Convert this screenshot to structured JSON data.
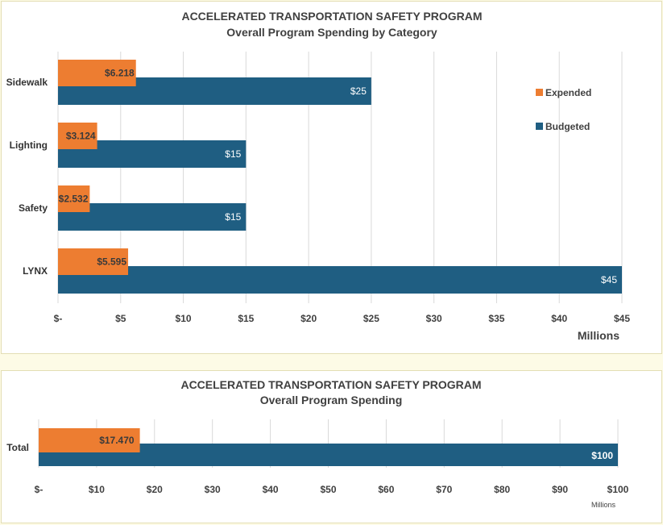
{
  "colors": {
    "expended": "#ed7d31",
    "budgeted": "#1f5e82"
  },
  "chart_data": [
    {
      "type": "bar",
      "orientation": "horizontal",
      "title": "ACCELERATED TRANSPORTATION SAFETY PROGRAM",
      "subtitle": "Overall Program Spending by Category",
      "categories": [
        "Sidewalk",
        "Lighting",
        "Safety",
        "LYNX"
      ],
      "series": [
        {
          "name": "Expended",
          "values": [
            6.218,
            3.124,
            2.532,
            5.595
          ],
          "labels": [
            "$6.218",
            "$3.124",
            "$2.532",
            "$5.595"
          ]
        },
        {
          "name": "Budgeted",
          "values": [
            25,
            15,
            15,
            45
          ],
          "labels": [
            "$25",
            "$15",
            "$15",
            "$45"
          ]
        }
      ],
      "xlim": [
        0,
        45
      ],
      "xticks": [
        0,
        5,
        10,
        15,
        20,
        25,
        30,
        35,
        40,
        45
      ],
      "xtick_labels": [
        "$-",
        "$5",
        "$10",
        "$15",
        "$20",
        "$25",
        "$30",
        "$35",
        "$40",
        "$45"
      ],
      "xlabel": "Millions",
      "legend": {
        "position": "right",
        "entries": [
          "Expended",
          "Budgeted"
        ]
      }
    },
    {
      "type": "bar",
      "orientation": "horizontal",
      "title": "ACCELERATED TRANSPORTATION SAFETY PROGRAM",
      "subtitle": "Overall Program Spending",
      "categories": [
        "Total"
      ],
      "series": [
        {
          "name": "Expended",
          "values": [
            17.47
          ],
          "labels": [
            "$17.470"
          ]
        },
        {
          "name": "Budgeted",
          "values": [
            100
          ],
          "labels": [
            "$100"
          ]
        }
      ],
      "xlim": [
        0,
        100
      ],
      "xticks": [
        0,
        10,
        20,
        30,
        40,
        50,
        60,
        70,
        80,
        90,
        100
      ],
      "xtick_labels": [
        "$-",
        "$10",
        "$20",
        "$30",
        "$40",
        "$50",
        "$60",
        "$70",
        "$80",
        "$90",
        "$100"
      ],
      "xlabel": "Millions"
    }
  ]
}
